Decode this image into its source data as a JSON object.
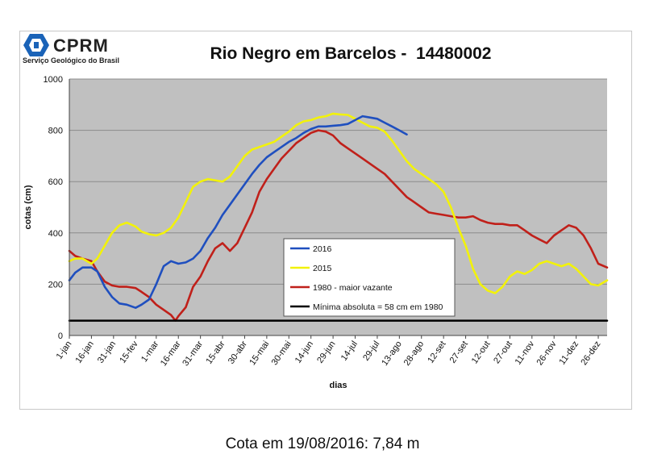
{
  "header": {
    "logo_text": "CPRM",
    "logo_subtitle": "Serviço Geológico do Brasil"
  },
  "footer": {
    "text": "Cota em 19/08/2016: 7,84 m"
  },
  "colors": {
    "plot_background": "#c0c0c0",
    "gridline": "#8c8c8c",
    "series_2016": "#1f4fbf",
    "series_2015": "#f2f20a",
    "series_1980": "#c0201a",
    "minimum_line": "#000000",
    "logo_blue": "#1a63b8"
  },
  "chart_data": {
    "type": "line",
    "title": "Rio Negro em Barcelos -  14480002",
    "xlabel": "dias",
    "ylabel": "cotas (cm)",
    "ylim": [
      0,
      1000
    ],
    "xlim": [
      1,
      366
    ],
    "yticks": [
      0,
      200,
      400,
      600,
      800,
      1000
    ],
    "xticks": [
      {
        "day": 1,
        "label": "1-jan"
      },
      {
        "day": 16,
        "label": "16-jan"
      },
      {
        "day": 31,
        "label": "31-jan"
      },
      {
        "day": 46,
        "label": "15-fev"
      },
      {
        "day": 60,
        "label": "1-mar"
      },
      {
        "day": 75,
        "label": "16-mar"
      },
      {
        "day": 90,
        "label": "31-mar"
      },
      {
        "day": 105,
        "label": "15-abr"
      },
      {
        "day": 120,
        "label": "30-abr"
      },
      {
        "day": 135,
        "label": "15-mai"
      },
      {
        "day": 150,
        "label": "30-mai"
      },
      {
        "day": 165,
        "label": "14-jun"
      },
      {
        "day": 180,
        "label": "29-jun"
      },
      {
        "day": 195,
        "label": "14-jul"
      },
      {
        "day": 210,
        "label": "29-jul"
      },
      {
        "day": 225,
        "label": "13-ago"
      },
      {
        "day": 240,
        "label": "28-ago"
      },
      {
        "day": 255,
        "label": "12-set"
      },
      {
        "day": 270,
        "label": "27-set"
      },
      {
        "day": 285,
        "label": "12-out"
      },
      {
        "day": 300,
        "label": "27-out"
      },
      {
        "day": 315,
        "label": "11-nov"
      },
      {
        "day": 330,
        "label": "26-nov"
      },
      {
        "day": 345,
        "label": "11-dez"
      },
      {
        "day": 360,
        "label": "26-dez"
      }
    ],
    "grid": true,
    "legend": {
      "placement": "center-right",
      "entries": [
        "2016",
        "2015",
        "1980 - maior vazante",
        "Mínima absoluta = 58 cm em 1980"
      ]
    },
    "series": [
      {
        "name": "2016",
        "color": "#1f4fbf",
        "x": [
          1,
          5,
          10,
          16,
          20,
          25,
          30,
          35,
          40,
          46,
          50,
          55,
          60,
          65,
          70,
          75,
          80,
          85,
          90,
          95,
          100,
          105,
          110,
          115,
          120,
          125,
          130,
          135,
          140,
          145,
          150,
          155,
          160,
          165,
          170,
          175,
          180,
          185,
          190,
          195,
          200,
          205,
          210,
          215,
          220,
          225,
          230
        ],
        "values": [
          215,
          245,
          265,
          265,
          250,
          190,
          150,
          125,
          120,
          108,
          120,
          140,
          200,
          270,
          290,
          280,
          285,
          300,
          330,
          380,
          420,
          470,
          510,
          550,
          590,
          630,
          665,
          695,
          715,
          735,
          755,
          770,
          790,
          805,
          815,
          815,
          818,
          820,
          825,
          840,
          855,
          850,
          845,
          830,
          815,
          800,
          784
        ]
      },
      {
        "name": "2015",
        "color": "#f2f20a",
        "x": [
          1,
          5,
          10,
          16,
          20,
          25,
          30,
          35,
          40,
          46,
          50,
          55,
          60,
          65,
          70,
          75,
          80,
          85,
          90,
          95,
          100,
          105,
          110,
          115,
          120,
          125,
          130,
          135,
          140,
          145,
          150,
          155,
          160,
          165,
          170,
          175,
          180,
          185,
          190,
          195,
          200,
          205,
          210,
          215,
          220,
          225,
          230,
          235,
          240,
          245,
          250,
          255,
          260,
          265,
          270,
          275,
          280,
          285,
          290,
          295,
          300,
          305,
          310,
          315,
          320,
          325,
          330,
          335,
          340,
          345,
          350,
          355,
          360,
          366
        ],
        "values": [
          290,
          300,
          300,
          280,
          300,
          350,
          400,
          430,
          440,
          425,
          405,
          395,
          390,
          400,
          420,
          460,
          520,
          580,
          600,
          610,
          605,
          600,
          620,
          660,
          700,
          725,
          735,
          745,
          755,
          775,
          795,
          820,
          835,
          840,
          850,
          855,
          865,
          862,
          860,
          845,
          830,
          815,
          810,
          795,
          760,
          720,
          680,
          650,
          630,
          610,
          590,
          560,
          500,
          420,
          350,
          260,
          200,
          175,
          165,
          190,
          230,
          250,
          240,
          255,
          280,
          290,
          280,
          270,
          280,
          260,
          230,
          200,
          195,
          215
        ]
      },
      {
        "name": "1980 - maior vazante",
        "color": "#c0201a",
        "x": [
          1,
          5,
          10,
          16,
          20,
          25,
          30,
          35,
          40,
          46,
          50,
          55,
          60,
          65,
          70,
          73,
          75,
          80,
          85,
          90,
          95,
          100,
          105,
          110,
          115,
          120,
          125,
          130,
          135,
          140,
          145,
          150,
          155,
          160,
          165,
          170,
          175,
          180,
          185,
          190,
          195,
          200,
          205,
          210,
          215,
          220,
          225,
          230,
          235,
          240,
          245,
          250,
          255,
          260,
          265,
          270,
          275,
          280,
          285,
          290,
          295,
          300,
          305,
          310,
          315,
          320,
          325,
          330,
          335,
          340,
          345,
          350,
          355,
          360,
          366
        ],
        "values": [
          330,
          310,
          300,
          290,
          250,
          210,
          195,
          190,
          190,
          185,
          170,
          150,
          120,
          100,
          80,
          58,
          75,
          110,
          190,
          230,
          290,
          340,
          360,
          330,
          360,
          420,
          480,
          560,
          610,
          650,
          690,
          720,
          750,
          770,
          790,
          800,
          795,
          780,
          750,
          730,
          710,
          690,
          670,
          650,
          630,
          600,
          570,
          540,
          520,
          500,
          480,
          475,
          470,
          465,
          460,
          460,
          465,
          450,
          440,
          435,
          435,
          430,
          430,
          410,
          390,
          375,
          360,
          390,
          410,
          430,
          420,
          390,
          340,
          280,
          265
        ]
      },
      {
        "name": "Mínima absoluta = 58 cm em 1980",
        "color": "#000000",
        "x": [
          1,
          366
        ],
        "values": [
          58,
          58
        ]
      }
    ]
  }
}
